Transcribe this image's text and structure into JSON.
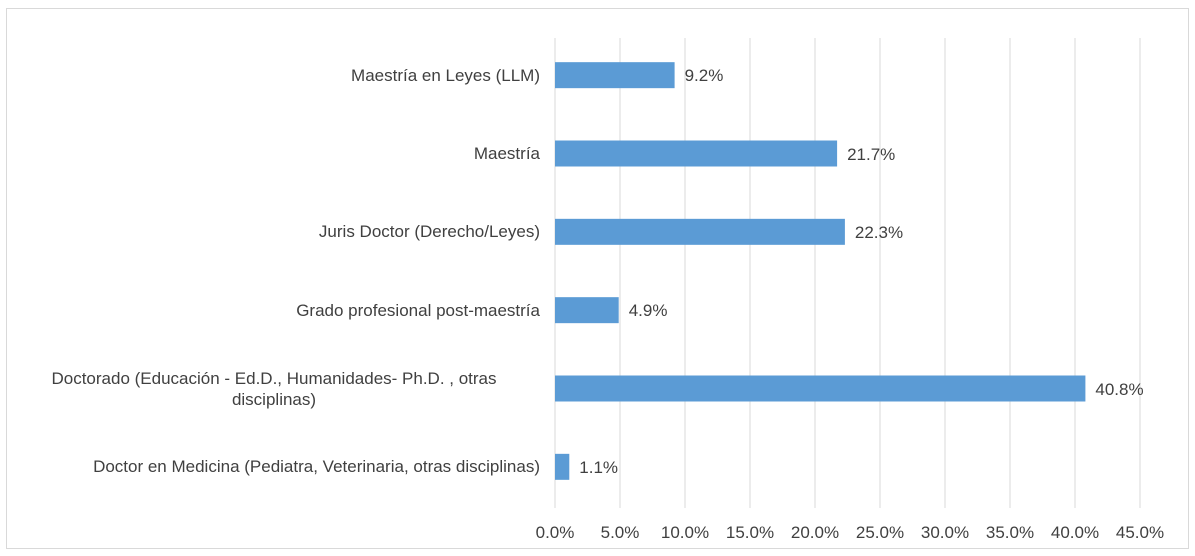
{
  "chart_data": {
    "type": "bar",
    "orientation": "horizontal",
    "categories": [
      "Maestría en Leyes (LLM)",
      "Maestría",
      "Juris Doctor (Derecho/Leyes)",
      "Grado profesional post-maestría",
      "Doctorado (Educación - Ed.D., Humanidades- Ph.D. , otras disciplinas)",
      "Doctor en Medicina (Pediatra, Veterinaria, otras disciplinas)"
    ],
    "values": [
      9.2,
      21.7,
      22.3,
      4.9,
      40.8,
      1.1
    ],
    "value_labels": [
      "9.2%",
      "21.7%",
      "22.3%",
      "4.9%",
      "40.8%",
      "1.1%"
    ],
    "color": "#5b9bd5",
    "xlim": [
      0,
      45
    ],
    "xticks": [
      {
        "value": 0,
        "label": "0.0%"
      },
      {
        "value": 5,
        "label": "5.0%"
      },
      {
        "value": 10,
        "label": "10.0%"
      },
      {
        "value": 15,
        "label": "15.0%"
      },
      {
        "value": 20,
        "label": "20.0%"
      },
      {
        "value": 25,
        "label": "25.0%"
      },
      {
        "value": 30,
        "label": "30.0%"
      },
      {
        "value": 35,
        "label": "35.0%"
      },
      {
        "value": 40,
        "label": "40.0%"
      },
      {
        "value": 45,
        "label": "45.0%"
      }
    ],
    "grid": true
  }
}
